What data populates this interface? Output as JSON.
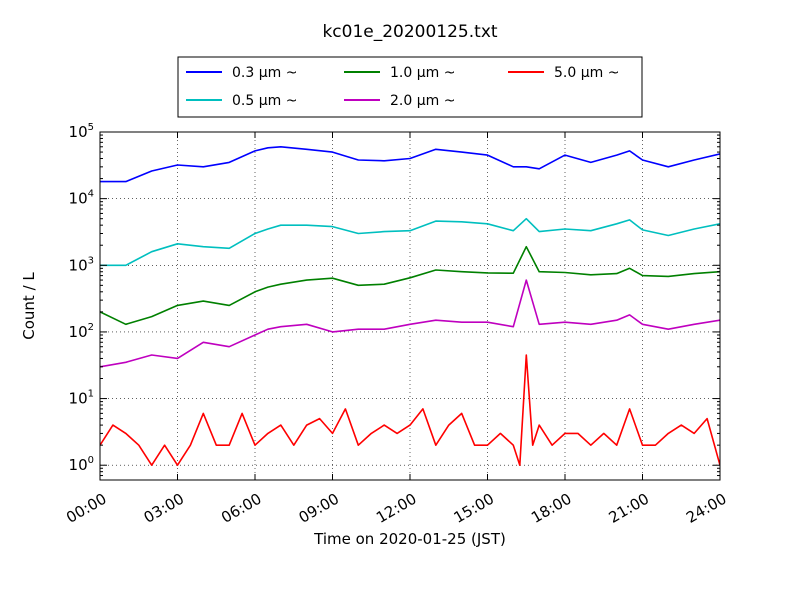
{
  "chart_data": {
    "type": "line",
    "title": "kc01e_20200125.txt",
    "xlabel": "Time on 2020-01-25 (JST)",
    "ylabel": "Count / L",
    "yscale": "log",
    "ylim": [
      0.6,
      100000
    ],
    "xlim": [
      "00:00",
      "24:00"
    ],
    "x_ticks": [
      "00:00",
      "03:00",
      "06:00",
      "09:00",
      "12:00",
      "15:00",
      "18:00",
      "21:00",
      "24:00"
    ],
    "y_ticks": [
      {
        "base": "10",
        "exp": "0"
      },
      {
        "base": "10",
        "exp": "1"
      },
      {
        "base": "10",
        "exp": "2"
      },
      {
        "base": "10",
        "exp": "3"
      },
      {
        "base": "10",
        "exp": "4"
      },
      {
        "base": "10",
        "exp": "5"
      }
    ],
    "grid": true,
    "legend_position": "top-center",
    "series": [
      {
        "name": "0.3 μm ~",
        "color": "#0000ff",
        "x": [
          "00:00",
          "01:00",
          "02:00",
          "03:00",
          "04:00",
          "05:00",
          "06:00",
          "06:30",
          "07:00",
          "08:00",
          "09:00",
          "10:00",
          "11:00",
          "12:00",
          "13:00",
          "14:00",
          "15:00",
          "16:00",
          "16:30",
          "17:00",
          "18:00",
          "19:00",
          "20:00",
          "20:30",
          "21:00",
          "22:00",
          "23:00",
          "24:00"
        ],
        "values": [
          18000,
          18000,
          26000,
          32000,
          30000,
          35000,
          52000,
          58000,
          60000,
          55000,
          50000,
          38000,
          37000,
          40000,
          55000,
          50000,
          45000,
          30000,
          30000,
          28000,
          45000,
          35000,
          45000,
          52000,
          38000,
          30000,
          38000,
          47000
        ]
      },
      {
        "name": "0.5 μm ~",
        "color": "#00bfbf",
        "x": [
          "00:00",
          "01:00",
          "02:00",
          "03:00",
          "04:00",
          "05:00",
          "06:00",
          "06:30",
          "07:00",
          "08:00",
          "09:00",
          "10:00",
          "11:00",
          "12:00",
          "13:00",
          "14:00",
          "15:00",
          "16:00",
          "16:30",
          "17:00",
          "18:00",
          "19:00",
          "20:00",
          "20:30",
          "21:00",
          "22:00",
          "23:00",
          "24:00"
        ],
        "values": [
          1000,
          1000,
          1600,
          2100,
          1900,
          1800,
          3000,
          3500,
          4000,
          4000,
          3800,
          3000,
          3200,
          3300,
          4600,
          4500,
          4200,
          3300,
          5000,
          3200,
          3500,
          3300,
          4200,
          4800,
          3400,
          2800,
          3500,
          4200
        ]
      },
      {
        "name": "1.0 μm ~",
        "color": "#008000",
        "x": [
          "00:00",
          "01:00",
          "02:00",
          "03:00",
          "04:00",
          "05:00",
          "06:00",
          "06:30",
          "07:00",
          "08:00",
          "09:00",
          "10:00",
          "11:00",
          "12:00",
          "13:00",
          "14:00",
          "15:00",
          "16:00",
          "16:30",
          "17:00",
          "18:00",
          "19:00",
          "20:00",
          "20:30",
          "21:00",
          "22:00",
          "23:00",
          "24:00"
        ],
        "values": [
          200,
          130,
          170,
          250,
          290,
          250,
          400,
          470,
          520,
          600,
          640,
          500,
          520,
          650,
          850,
          800,
          770,
          760,
          1900,
          800,
          780,
          720,
          750,
          900,
          700,
          680,
          750,
          800
        ]
      },
      {
        "name": "2.0 μm ~",
        "color": "#bf00bf",
        "x": [
          "00:00",
          "01:00",
          "02:00",
          "03:00",
          "04:00",
          "05:00",
          "06:00",
          "06:30",
          "07:00",
          "08:00",
          "09:00",
          "10:00",
          "11:00",
          "12:00",
          "13:00",
          "14:00",
          "15:00",
          "16:00",
          "16:30",
          "17:00",
          "18:00",
          "19:00",
          "20:00",
          "20:30",
          "21:00",
          "22:00",
          "23:00",
          "24:00"
        ],
        "values": [
          30,
          35,
          45,
          40,
          70,
          60,
          90,
          110,
          120,
          130,
          100,
          110,
          110,
          130,
          150,
          140,
          140,
          120,
          600,
          130,
          140,
          130,
          150,
          180,
          130,
          110,
          130,
          150
        ]
      },
      {
        "name": "5.0 μm ~",
        "color": "#ff0000",
        "x": [
          "00:00",
          "00:30",
          "01:00",
          "01:30",
          "02:00",
          "02:30",
          "03:00",
          "03:30",
          "04:00",
          "04:30",
          "05:00",
          "05:30",
          "06:00",
          "06:30",
          "07:00",
          "07:30",
          "08:00",
          "08:30",
          "09:00",
          "09:30",
          "10:00",
          "10:30",
          "11:00",
          "11:30",
          "12:00",
          "12:30",
          "13:00",
          "13:30",
          "14:00",
          "14:30",
          "15:00",
          "15:30",
          "16:00",
          "16:15",
          "16:30",
          "16:45",
          "17:00",
          "17:30",
          "18:00",
          "18:30",
          "19:00",
          "19:30",
          "20:00",
          "20:30",
          "21:00",
          "21:30",
          "22:00",
          "22:30",
          "23:00",
          "23:30",
          "24:00"
        ],
        "values": [
          2,
          4,
          3,
          2,
          1,
          2,
          1,
          2,
          6,
          2,
          2,
          6,
          2,
          3,
          4,
          2,
          4,
          5,
          3,
          7,
          2,
          3,
          4,
          3,
          4,
          7,
          2,
          4,
          6,
          2,
          2,
          3,
          2,
          1,
          45,
          2,
          4,
          2,
          3,
          3,
          2,
          3,
          2,
          7,
          2,
          2,
          3,
          4,
          3,
          5,
          1
        ]
      }
    ]
  }
}
